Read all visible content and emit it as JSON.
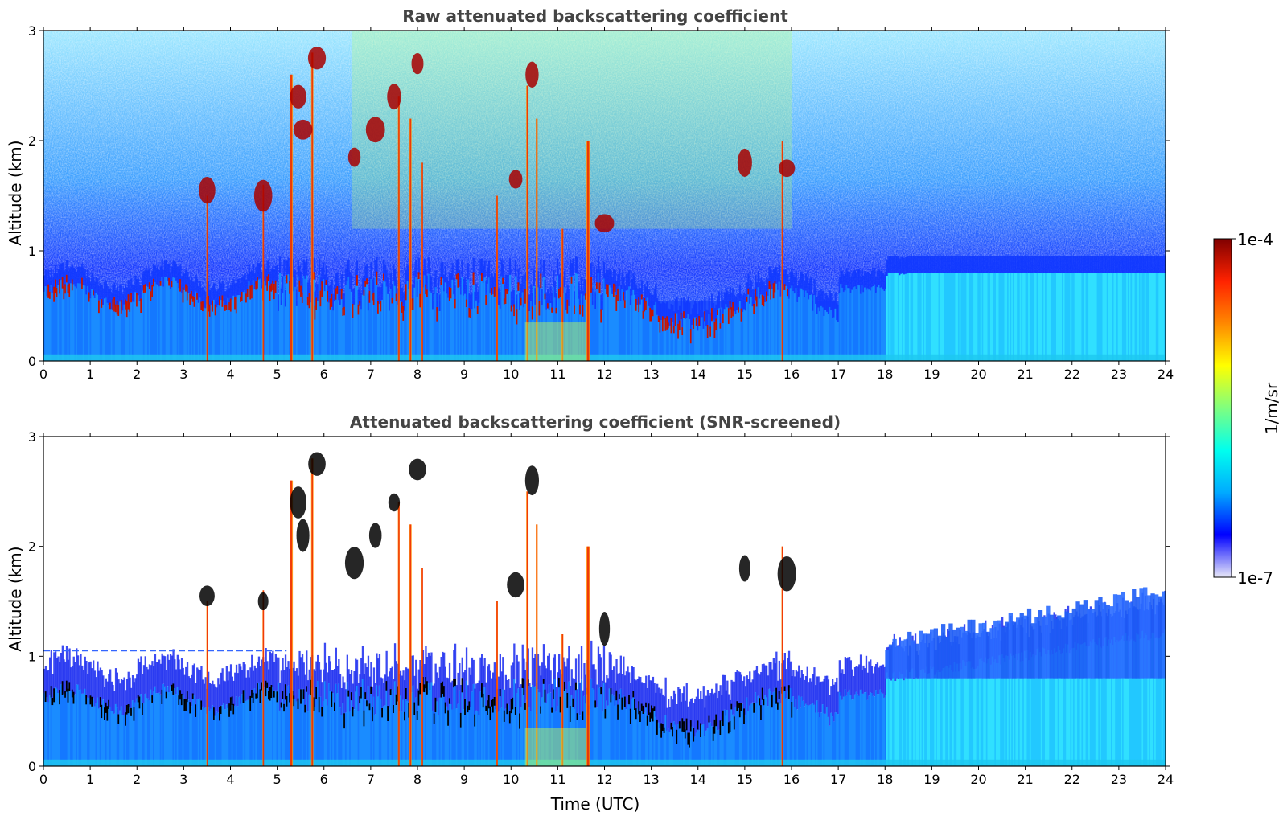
{
  "chart_data": [
    {
      "type": "heatmap",
      "title": "Raw attenuated backscattering coefficient",
      "xlabel": "",
      "ylabel": "Altitude (km)",
      "xlim": [
        0,
        24
      ],
      "ylim": [
        0,
        3
      ],
      "xticks": [
        "0",
        "1",
        "2",
        "3",
        "4",
        "5",
        "6",
        "7",
        "8",
        "9",
        "10",
        "11",
        "12",
        "13",
        "14",
        "15",
        "16",
        "17",
        "18",
        "19",
        "20",
        "21",
        "22",
        "23",
        "24"
      ],
      "yticks": [
        "0",
        "1",
        "2",
        "3"
      ],
      "screened": false
    },
    {
      "type": "heatmap",
      "title": "Attenuated backscattering coefficient (SNR-screened)",
      "xlabel": "Time (UTC)",
      "ylabel": "Altitude (km)",
      "xlim": [
        0,
        24
      ],
      "ylim": [
        0,
        3
      ],
      "xticks": [
        "0",
        "1",
        "2",
        "3",
        "4",
        "5",
        "6",
        "7",
        "8",
        "9",
        "10",
        "11",
        "12",
        "13",
        "14",
        "15",
        "16",
        "17",
        "18",
        "19",
        "20",
        "21",
        "22",
        "23",
        "24"
      ],
      "yticks": [
        "0",
        "1",
        "2",
        "3"
      ],
      "screened": true
    }
  ],
  "colorbar": {
    "label": "1/m/sr",
    "max_label": "1e-4",
    "min_label": "1e-7",
    "range": [
      1e-07,
      0.0001
    ],
    "scale": "log",
    "colormap": "jet",
    "colors": [
      "#e8e8f8",
      "#0000ff",
      "#00aaff",
      "#00ffee",
      "#7fff7f",
      "#ffff00",
      "#ff8800",
      "#ff2200",
      "#800000"
    ]
  }
}
